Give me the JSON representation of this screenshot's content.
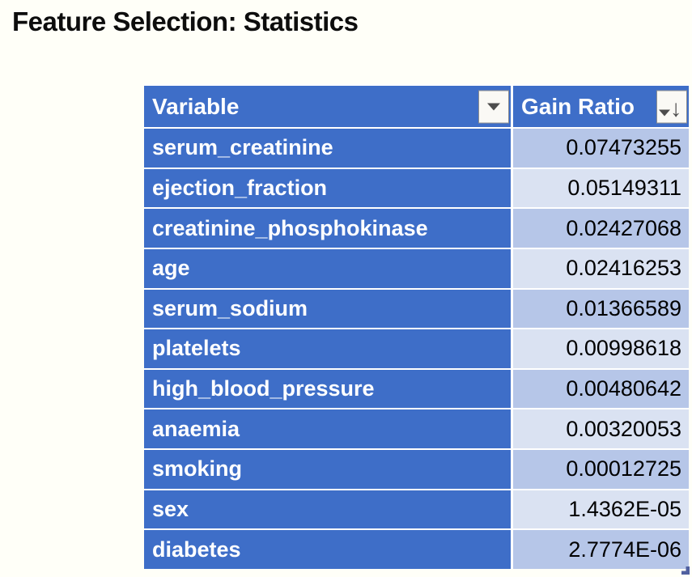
{
  "title": "Feature Selection: Statistics",
  "colors": {
    "header_blue": "#3E6EC8",
    "band_dark": "#B6C6E8",
    "band_light": "#DAE2F2",
    "page_bg": "#FFFFF8",
    "title_color": "#0D0D0D"
  },
  "icons": {
    "filter_dropdown": "triangle-down",
    "sort_descending_glyph": "↓"
  },
  "table": {
    "columns": [
      {
        "label": "Variable",
        "filter": "dropdown",
        "sorted": false
      },
      {
        "label": "Gain Ratio",
        "filter": "dropdown",
        "sorted": true,
        "sort_direction": "descending"
      }
    ],
    "rows": [
      {
        "variable": "serum_creatinine",
        "gain_ratio": "0.07473255"
      },
      {
        "variable": "ejection_fraction",
        "gain_ratio": "0.05149311"
      },
      {
        "variable": "creatinine_phosphokinase",
        "gain_ratio": "0.02427068"
      },
      {
        "variable": "age",
        "gain_ratio": "0.02416253"
      },
      {
        "variable": "serum_sodium",
        "gain_ratio": "0.01366589"
      },
      {
        "variable": "platelets",
        "gain_ratio": "0.00998618"
      },
      {
        "variable": "high_blood_pressure",
        "gain_ratio": "0.00480642"
      },
      {
        "variable": "anaemia",
        "gain_ratio": "0.00320053"
      },
      {
        "variable": "smoking",
        "gain_ratio": "0.00012725"
      },
      {
        "variable": "sex",
        "gain_ratio": "1.4362E-05"
      },
      {
        "variable": "diabetes",
        "gain_ratio": "2.7774E-06"
      }
    ]
  }
}
